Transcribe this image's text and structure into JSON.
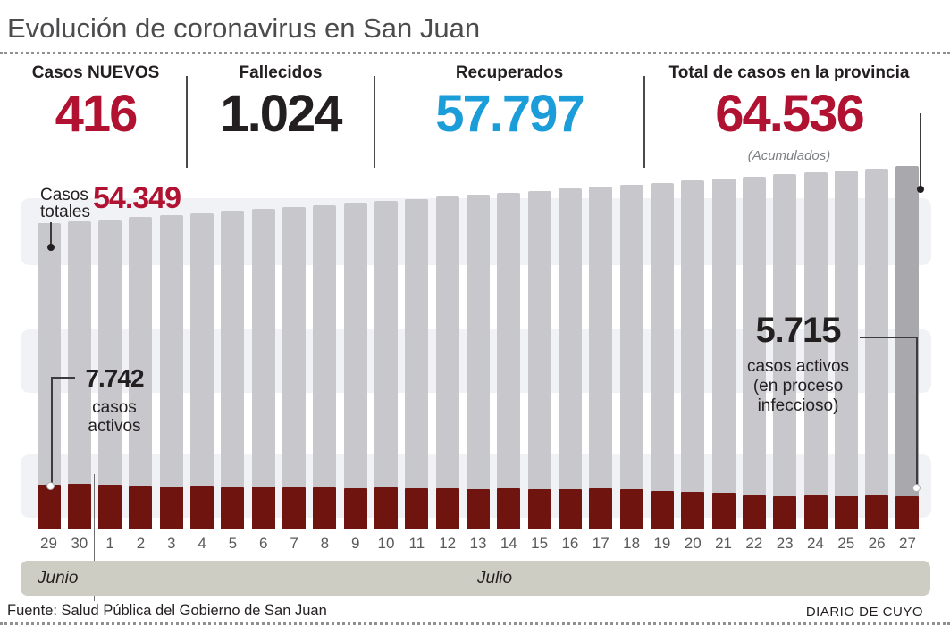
{
  "title": "Evolución de coronavirus en San Juan",
  "stats": [
    {
      "label": "Casos NUEVOS",
      "value": "416",
      "color": "#b11231"
    },
    {
      "label": "Fallecidos",
      "value": "1.024",
      "color": "#231f20"
    },
    {
      "label": "Recuperados",
      "value": "57.797",
      "color": "#1b9dd9"
    },
    {
      "label": "Total de casos en la provincia",
      "value": "64.536",
      "note": "(Acumulados)",
      "color": "#b11231"
    }
  ],
  "annotations": {
    "first_total": {
      "label_line1": "Casos",
      "label_line2": "totales",
      "value": "54.349"
    },
    "first_active": {
      "value": "7.742",
      "caption_line1": "casos",
      "caption_line2": "activos"
    },
    "last_active": {
      "value": "5.715",
      "caption_line1": "casos activos",
      "caption_line2": "(en proceso",
      "caption_line3": "infeccioso)"
    }
  },
  "months": {
    "first": "Junio",
    "second": "Julio"
  },
  "footer": {
    "source": "Fuente: Salud Pública del Gobierno de San Juan",
    "credit": "DIARIO DE CUYO"
  },
  "colors": {
    "accent_red": "#b11231",
    "accent_blue": "#1b9dd9",
    "ink": "#231f20",
    "bar_total": "#c7c7cc",
    "bar_total_last": "#a9a9ad",
    "bar_active": "#701410",
    "stripe": "#f1f2f5",
    "month_band": "#cdcdc4"
  },
  "chart_data": {
    "type": "bar",
    "title": "Evolución de coronavirus en San Juan",
    "xlabel": "",
    "ylabel": "",
    "ylim": [
      0,
      64536
    ],
    "grid": false,
    "legend_position": "none",
    "categories": [
      "29",
      "30",
      "1",
      "2",
      "3",
      "4",
      "5",
      "6",
      "7",
      "8",
      "9",
      "10",
      "11",
      "12",
      "13",
      "14",
      "15",
      "16",
      "17",
      "18",
      "19",
      "20",
      "21",
      "22",
      "23",
      "24",
      "25",
      "26",
      "27"
    ],
    "month_groups": [
      {
        "label": "Junio",
        "count": 2
      },
      {
        "label": "Julio",
        "count": 27
      }
    ],
    "series": [
      {
        "name": "Casos totales (acumulados)",
        "values": [
          54349,
          54710,
          55075,
          55440,
          55800,
          56160,
          56520,
          56880,
          57245,
          57605,
          57970,
          58330,
          58690,
          59055,
          59415,
          59780,
          60140,
          60500,
          60865,
          61225,
          61590,
          61950,
          62310,
          62675,
          63035,
          63400,
          63760,
          64120,
          64536
        ]
      },
      {
        "name": "Casos activos (en proceso infeccioso)",
        "values": [
          7742,
          7900,
          7790,
          7630,
          7470,
          7630,
          7310,
          7470,
          7310,
          7310,
          7150,
          7310,
          7150,
          7150,
          6990,
          7150,
          6990,
          6990,
          7150,
          6990,
          6670,
          6520,
          6360,
          6040,
          5720,
          6040,
          5880,
          6040,
          5715
        ]
      }
    ],
    "callouts": [
      {
        "series": "Casos totales",
        "category": "29 Junio",
        "value": 54349
      },
      {
        "series": "Casos totales",
        "category": "27 Julio",
        "value": 64536
      },
      {
        "series": "Casos activos",
        "category": "29 Junio",
        "value": 7742
      },
      {
        "series": "Casos activos",
        "category": "27 Julio",
        "value": 5715
      }
    ]
  }
}
